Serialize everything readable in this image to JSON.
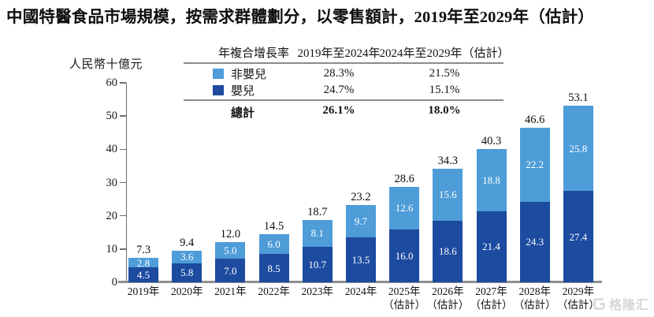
{
  "title": "中國特醫食品市場規模，按需求群體劃分，以零售額計，2019年至2029年（估計）",
  "y_axis_unit": "人民幣十億元",
  "cagr_table": {
    "header": [
      "年複合增長率",
      "2019年至2024年",
      "2024年至2029年（估計）"
    ],
    "rows": [
      {
        "label": "非嬰兒",
        "series": "non_infant",
        "cagr_2019_2024": "28.3%",
        "cagr_2024_2029": "21.5%"
      },
      {
        "label": "嬰兒",
        "series": "infant",
        "cagr_2019_2024": "24.7%",
        "cagr_2024_2029": "15.1%"
      }
    ],
    "total": {
      "label": "總計",
      "cagr_2019_2024": "26.1%",
      "cagr_2024_2029": "18.0%"
    }
  },
  "chart_data": {
    "type": "bar",
    "stacked": true,
    "title": "中國特醫食品市場規模，按需求群體劃分，以零售額計，2019年至2029年（估計）",
    "ylabel": "人民幣十億元",
    "ylim": [
      0,
      60
    ],
    "yticks": [
      0,
      10,
      20,
      30,
      40,
      50,
      60
    ],
    "grid": false,
    "legend_position": "table-top",
    "categories": [
      {
        "label": "2019年",
        "note": ""
      },
      {
        "label": "2020年",
        "note": ""
      },
      {
        "label": "2021年",
        "note": ""
      },
      {
        "label": "2022年",
        "note": ""
      },
      {
        "label": "2023年",
        "note": ""
      },
      {
        "label": "2024年",
        "note": ""
      },
      {
        "label": "2025年",
        "note": "（估計）"
      },
      {
        "label": "2026年",
        "note": "（估計）"
      },
      {
        "label": "2027年",
        "note": "（估計）"
      },
      {
        "label": "2028年",
        "note": "（估計）"
      },
      {
        "label": "2029年",
        "note": "（估計）"
      }
    ],
    "series": [
      {
        "name": "非嬰兒",
        "key": "non_infant",
        "color": "#4E9CD8",
        "values": [
          2.8,
          3.6,
          5.0,
          6.0,
          8.1,
          9.7,
          12.6,
          15.6,
          18.8,
          22.2,
          25.8
        ]
      },
      {
        "name": "嬰兒",
        "key": "infant",
        "color": "#1C4BA0",
        "values": [
          4.5,
          5.8,
          7.0,
          8.5,
          10.7,
          13.5,
          16.0,
          18.6,
          21.4,
          24.3,
          27.4
        ]
      }
    ],
    "totals": [
      7.3,
      9.4,
      12.0,
      14.5,
      18.7,
      23.2,
      28.6,
      34.3,
      40.3,
      46.6,
      53.1
    ]
  },
  "watermark": {
    "text": "格隆汇"
  }
}
